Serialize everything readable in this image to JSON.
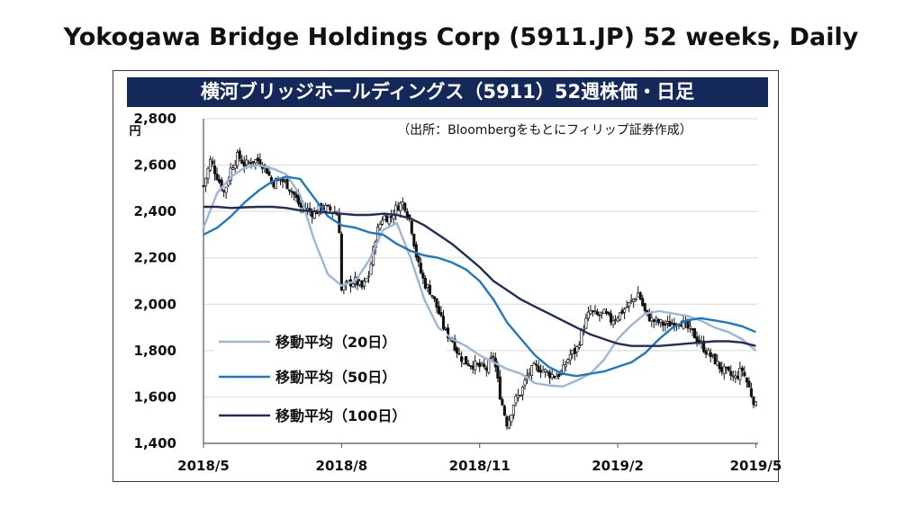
{
  "header": {
    "title": "Yokogawa Bridge Holdings Corp (5911.JP) 52 weeks, Daily"
  },
  "chart_data": {
    "type": "line",
    "title": "横河ブリッジホールディングス（5911）52週株価・日足",
    "source": "（出所：Bloombergをもとにフィリップ証券作成）",
    "ylabel": "円",
    "ylim": [
      1400,
      2800
    ],
    "yticks": [
      "1,400",
      "1,600",
      "1,800",
      "2,000",
      "2,200",
      "2,400",
      "2,600",
      "2,800"
    ],
    "yticks_values": [
      1400,
      1600,
      1800,
      2000,
      2200,
      2400,
      2600,
      2800
    ],
    "xticks": [
      "2018/5",
      "2018/8",
      "2018/11",
      "2019/2",
      "2019/5"
    ],
    "xticks_values": [
      0,
      3,
      6,
      9,
      12
    ],
    "xlim": [
      0,
      12.05
    ],
    "grid": true,
    "legend_position": "left",
    "colors": {
      "candle": "#111111",
      "ma20": "#9bb7d6",
      "ma50": "#1f78c1",
      "ma100": "#1f2f57",
      "banner_bg": "#14285a",
      "banner_text": "#ffffff"
    },
    "series": [
      {
        "name": "移動平均（20日）",
        "color": "#9bb7d6",
        "x": [
          0,
          0.3,
          0.6,
          0.9,
          1.2,
          1.5,
          1.8,
          2.1,
          2.4,
          2.7,
          3.0,
          3.3,
          3.6,
          3.9,
          4.2,
          4.5,
          4.8,
          5.1,
          5.4,
          5.7,
          6.0,
          6.3,
          6.6,
          6.9,
          7.2,
          7.5,
          7.8,
          8.1,
          8.4,
          8.7,
          9.0,
          9.3,
          9.6,
          9.9,
          10.2,
          10.5,
          10.8,
          11.1,
          11.4,
          11.7,
          12.0
        ],
        "values": [
          2330,
          2480,
          2550,
          2590,
          2600,
          2585,
          2560,
          2470,
          2280,
          2130,
          2080,
          2100,
          2190,
          2320,
          2350,
          2200,
          2020,
          1900,
          1850,
          1820,
          1780,
          1750,
          1720,
          1700,
          1660,
          1650,
          1645,
          1670,
          1700,
          1760,
          1850,
          1910,
          1960,
          1970,
          1960,
          1950,
          1930,
          1900,
          1880,
          1850,
          1800
        ]
      },
      {
        "name": "移動平均（50日）",
        "color": "#1f78c1",
        "x": [
          0,
          0.3,
          0.6,
          0.9,
          1.2,
          1.5,
          1.8,
          2.1,
          2.4,
          2.7,
          3.0,
          3.3,
          3.6,
          3.9,
          4.2,
          4.5,
          4.8,
          5.1,
          5.4,
          5.7,
          6.0,
          6.3,
          6.6,
          6.9,
          7.2,
          7.5,
          7.8,
          8.1,
          8.4,
          8.7,
          9.0,
          9.3,
          9.6,
          9.9,
          10.2,
          10.5,
          10.8,
          11.1,
          11.4,
          11.7,
          12.0
        ],
        "values": [
          2300,
          2330,
          2380,
          2440,
          2490,
          2530,
          2550,
          2540,
          2460,
          2380,
          2340,
          2330,
          2310,
          2300,
          2260,
          2230,
          2210,
          2200,
          2180,
          2150,
          2100,
          2020,
          1920,
          1850,
          1780,
          1730,
          1700,
          1690,
          1700,
          1710,
          1730,
          1750,
          1790,
          1850,
          1900,
          1930,
          1940,
          1930,
          1920,
          1905,
          1880
        ]
      },
      {
        "name": "移動平均（100日）",
        "color": "#1f2f57",
        "x": [
          0,
          0.3,
          0.6,
          0.9,
          1.2,
          1.5,
          1.8,
          2.1,
          2.4,
          2.7,
          3.0,
          3.3,
          3.6,
          3.9,
          4.2,
          4.5,
          4.8,
          5.1,
          5.4,
          5.7,
          6.0,
          6.3,
          6.6,
          6.9,
          7.2,
          7.5,
          7.8,
          8.1,
          8.4,
          8.7,
          9.0,
          9.3,
          9.6,
          9.9,
          10.2,
          10.5,
          10.8,
          11.1,
          11.4,
          11.7,
          12.0
        ],
        "values": [
          2420,
          2420,
          2415,
          2418,
          2420,
          2420,
          2415,
          2405,
          2400,
          2395,
          2390,
          2385,
          2385,
          2390,
          2385,
          2370,
          2340,
          2300,
          2260,
          2210,
          2160,
          2100,
          2060,
          2020,
          1990,
          1960,
          1930,
          1900,
          1870,
          1850,
          1830,
          1820,
          1820,
          1820,
          1825,
          1830,
          1835,
          1840,
          1840,
          1835,
          1820
        ]
      }
    ],
    "price_path": {
      "x": [
        0,
        0.15,
        0.3,
        0.45,
        0.6,
        0.75,
        0.9,
        1.05,
        1.2,
        1.35,
        1.5,
        1.65,
        1.8,
        1.95,
        2.1,
        2.25,
        2.4,
        2.55,
        2.7,
        2.85,
        2.94,
        3.0,
        3.15,
        3.3,
        3.45,
        3.6,
        3.75,
        3.9,
        4.05,
        4.2,
        4.35,
        4.5,
        4.65,
        4.8,
        4.95,
        5.1,
        5.25,
        5.4,
        5.55,
        5.7,
        5.85,
        6.0,
        6.15,
        6.3,
        6.45,
        6.6,
        6.75,
        6.9,
        7.05,
        7.2,
        7.35,
        7.5,
        7.65,
        7.8,
        7.95,
        8.1,
        8.25,
        8.4,
        8.55,
        8.7,
        8.85,
        9.0,
        9.15,
        9.3,
        9.45,
        9.6,
        9.75,
        9.9,
        10.05,
        10.2,
        10.35,
        10.5,
        10.65,
        10.8,
        10.95,
        11.1,
        11.25,
        11.4,
        11.55,
        11.7,
        11.85,
        12.0
      ],
      "close": [
        2510,
        2620,
        2550,
        2480,
        2590,
        2640,
        2600,
        2620,
        2620,
        2590,
        2520,
        2540,
        2520,
        2480,
        2420,
        2410,
        2390,
        2420,
        2410,
        2400,
        2380,
        2060,
        2090,
        2100,
        2070,
        2130,
        2300,
        2380,
        2370,
        2420,
        2440,
        2350,
        2180,
        2090,
        2050,
        1970,
        1880,
        1850,
        1780,
        1750,
        1740,
        1730,
        1720,
        1780,
        1600,
        1480,
        1580,
        1620,
        1700,
        1730,
        1720,
        1700,
        1690,
        1710,
        1780,
        1800,
        1900,
        1970,
        1950,
        1960,
        1930,
        1950,
        1980,
        2010,
        2050,
        1960,
        1930,
        1920,
        1910,
        1920,
        1930,
        1900,
        1870,
        1830,
        1790,
        1760,
        1720,
        1700,
        1680,
        1720,
        1640,
        1560
      ]
    },
    "legend": [
      "移動平均（20日）",
      "移動平均（50日）",
      "移動平均（100日）"
    ]
  }
}
